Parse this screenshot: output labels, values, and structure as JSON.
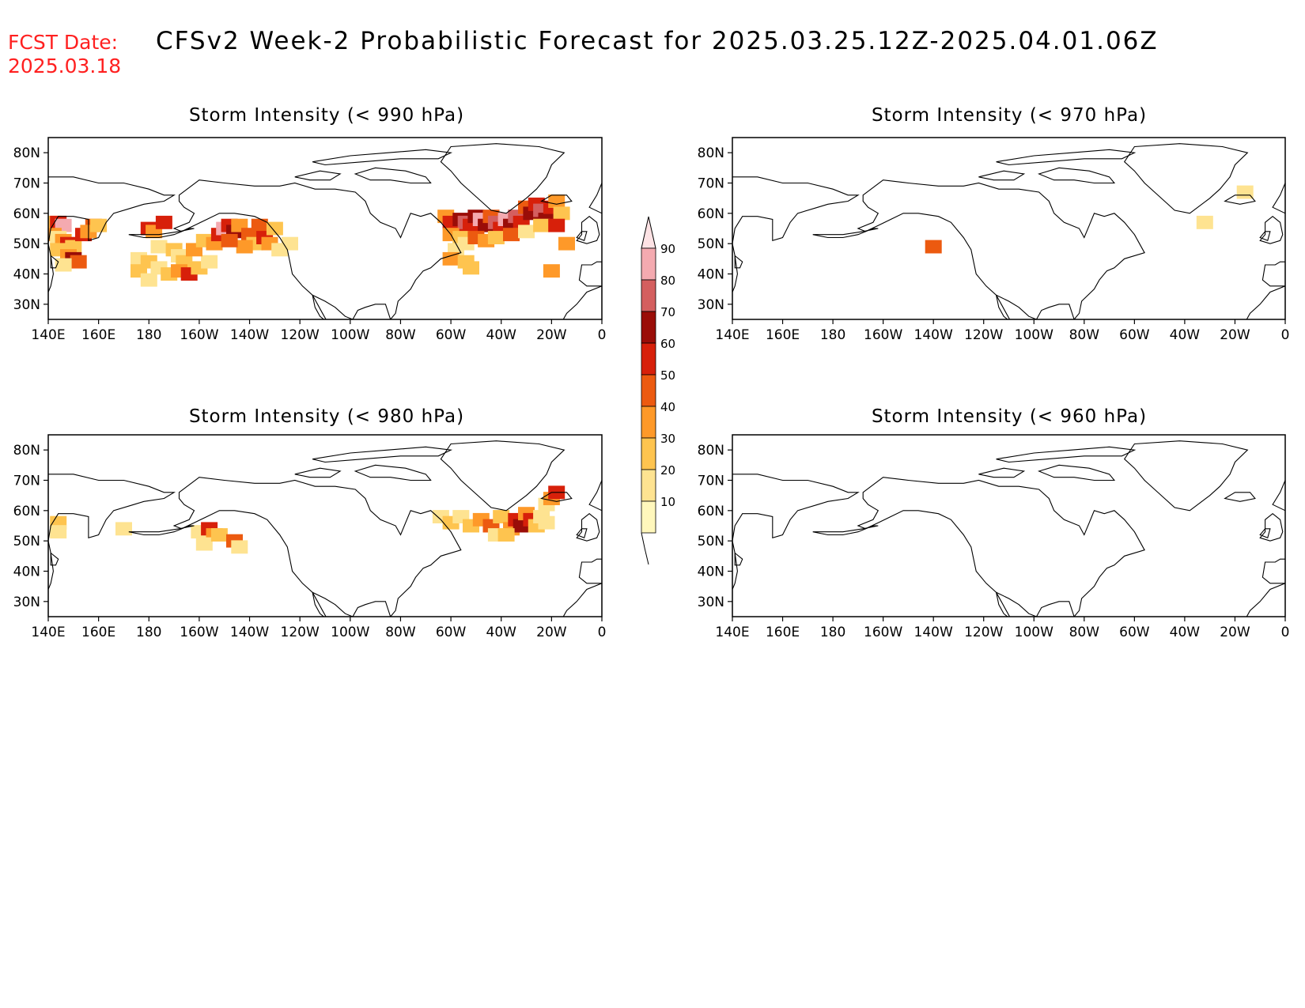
{
  "header": {
    "fcst_label": "FCST Date:",
    "fcst_date": "2025.03.18",
    "title": "CFSv2 Week-2 Probabilistic Forecast for 2025.03.25.12Z-2025.04.01.06Z"
  },
  "colors": {
    "c10": "#fff7bc",
    "c20": "#fee391",
    "c30": "#fec44f",
    "c40": "#fe9929",
    "c50": "#ec5a10",
    "c60": "#d7200a",
    "c70": "#9a0d08",
    "c80": "#d45f5f",
    "c90": "#f4aab0",
    "c100": "#fde2e4",
    "coast": "#000000"
  },
  "colorbar": {
    "levels": [
      "10",
      "20",
      "30",
      "40",
      "50",
      "60",
      "70",
      "80",
      "90"
    ],
    "colors": [
      "#fff7bc",
      "#fee391",
      "#fec44f",
      "#fe9929",
      "#ec5a10",
      "#d7200a",
      "#9a0d08",
      "#d45f5f",
      "#f4aab0",
      "#fde2e4"
    ]
  },
  "axes": {
    "x_ticks": [
      "140E",
      "160E",
      "180",
      "160W",
      "140W",
      "120W",
      "100W",
      "80W",
      "60W",
      "40W",
      "20W",
      "0"
    ],
    "y_ticks": [
      "80N",
      "70N",
      "60N",
      "50N",
      "40N",
      "30N"
    ]
  },
  "chart_data": [
    {
      "type": "heatmap",
      "title": "Storm Intensity (< 990 hPa)",
      "lon_range": [
        140,
        360
      ],
      "lat_range": [
        25,
        85
      ],
      "cells": [
        [
          142,
          57,
          30
        ],
        [
          144,
          57,
          60
        ],
        [
          146,
          56,
          90
        ],
        [
          142,
          53,
          40
        ],
        [
          144,
          52,
          20
        ],
        [
          146,
          51,
          40
        ],
        [
          148,
          50,
          60
        ],
        [
          150,
          49,
          30
        ],
        [
          144,
          48,
          30
        ],
        [
          148,
          46,
          40
        ],
        [
          150,
          45,
          70
        ],
        [
          152,
          44,
          50
        ],
        [
          146,
          43,
          20
        ],
        [
          154,
          53,
          60
        ],
        [
          158,
          56,
          50
        ],
        [
          156,
          54,
          40
        ],
        [
          160,
          56,
          30
        ],
        [
          180,
          55,
          60
        ],
        [
          182,
          54,
          40
        ],
        [
          186,
          57,
          60
        ],
        [
          176,
          45,
          20
        ],
        [
          180,
          44,
          30
        ],
        [
          184,
          42,
          20
        ],
        [
          176,
          41,
          30
        ],
        [
          180,
          38,
          20
        ],
        [
          188,
          40,
          30
        ],
        [
          184,
          49,
          20
        ],
        [
          190,
          48,
          30
        ],
        [
          192,
          46,
          20
        ],
        [
          194,
          44,
          30
        ],
        [
          192,
          41,
          40
        ],
        [
          196,
          40,
          60
        ],
        [
          200,
          42,
          30
        ],
        [
          204,
          44,
          20
        ],
        [
          198,
          48,
          40
        ],
        [
          202,
          51,
          30
        ],
        [
          206,
          50,
          40
        ],
        [
          208,
          53,
          60
        ],
        [
          210,
          55,
          90
        ],
        [
          212,
          56,
          60
        ],
        [
          214,
          54,
          70
        ],
        [
          216,
          56,
          40
        ],
        [
          220,
          53,
          50
        ],
        [
          222,
          50,
          30
        ],
        [
          218,
          49,
          40
        ],
        [
          224,
          56,
          50
        ],
        [
          226,
          52,
          60
        ],
        [
          228,
          50,
          40
        ],
        [
          230,
          55,
          30
        ],
        [
          232,
          48,
          20
        ],
        [
          212,
          51,
          50
        ],
        [
          236,
          50,
          20
        ],
        [
          298,
          59,
          40
        ],
        [
          300,
          57,
          60
        ],
        [
          302,
          55,
          60
        ],
        [
          304,
          58,
          70
        ],
        [
          306,
          57,
          80
        ],
        [
          308,
          56,
          60
        ],
        [
          310,
          59,
          70
        ],
        [
          312,
          58,
          90
        ],
        [
          314,
          56,
          70
        ],
        [
          316,
          59,
          50
        ],
        [
          318,
          57,
          80
        ],
        [
          320,
          55,
          60
        ],
        [
          322,
          58,
          90
        ],
        [
          324,
          56,
          70
        ],
        [
          326,
          59,
          80
        ],
        [
          328,
          57,
          60
        ],
        [
          330,
          62,
          50
        ],
        [
          332,
          60,
          70
        ],
        [
          334,
          63,
          60
        ],
        [
          336,
          61,
          80
        ],
        [
          338,
          58,
          70
        ],
        [
          340,
          62,
          60
        ],
        [
          342,
          64,
          40
        ],
        [
          344,
          60,
          30
        ],
        [
          300,
          53,
          40
        ],
        [
          304,
          52,
          30
        ],
        [
          306,
          50,
          20
        ],
        [
          302,
          48,
          20
        ],
        [
          300,
          45,
          40
        ],
        [
          306,
          44,
          30
        ],
        [
          310,
          52,
          50
        ],
        [
          314,
          51,
          40
        ],
        [
          318,
          52,
          30
        ],
        [
          324,
          53,
          50
        ],
        [
          330,
          54,
          20
        ],
        [
          336,
          56,
          30
        ],
        [
          308,
          42,
          30
        ],
        [
          340,
          41,
          40
        ],
        [
          342,
          56,
          60
        ],
        [
          346,
          50,
          40
        ]
      ]
    },
    {
      "type": "heatmap",
      "title": "Storm Intensity (< 970 hPa)",
      "lon_range": [
        140,
        360
      ],
      "lat_range": [
        25,
        85
      ],
      "cells": [
        [
          220,
          49,
          50
        ],
        [
          328,
          57,
          20
        ],
        [
          344,
          67,
          20
        ]
      ]
    },
    {
      "type": "heatmap",
      "title": "Storm Intensity (< 980 hPa)",
      "lon_range": [
        140,
        360
      ],
      "lat_range": [
        25,
        85
      ],
      "cells": [
        [
          144,
          56,
          30
        ],
        [
          144,
          53,
          20
        ],
        [
          170,
          54,
          20
        ],
        [
          200,
          53,
          20
        ],
        [
          204,
          54,
          60
        ],
        [
          206,
          52,
          40
        ],
        [
          202,
          49,
          20
        ],
        [
          208,
          52,
          30
        ],
        [
          214,
          50,
          50
        ],
        [
          216,
          48,
          20
        ],
        [
          296,
          58,
          20
        ],
        [
          300,
          56,
          30
        ],
        [
          304,
          58,
          20
        ],
        [
          308,
          55,
          30
        ],
        [
          312,
          57,
          40
        ],
        [
          316,
          55,
          50
        ],
        [
          320,
          58,
          30
        ],
        [
          324,
          54,
          40
        ],
        [
          326,
          57,
          60
        ],
        [
          328,
          55,
          70
        ],
        [
          330,
          59,
          40
        ],
        [
          332,
          57,
          60
        ],
        [
          334,
          55,
          30
        ],
        [
          336,
          58,
          20
        ],
        [
          338,
          62,
          20
        ],
        [
          340,
          64,
          40
        ],
        [
          342,
          66,
          60
        ],
        [
          318,
          52,
          20
        ],
        [
          322,
          52,
          30
        ],
        [
          338,
          56,
          20
        ]
      ]
    },
    {
      "type": "heatmap",
      "title": "Storm Intensity (< 960 hPa)",
      "lon_range": [
        140,
        360
      ],
      "lat_range": [
        25,
        85
      ],
      "cells": []
    }
  ]
}
